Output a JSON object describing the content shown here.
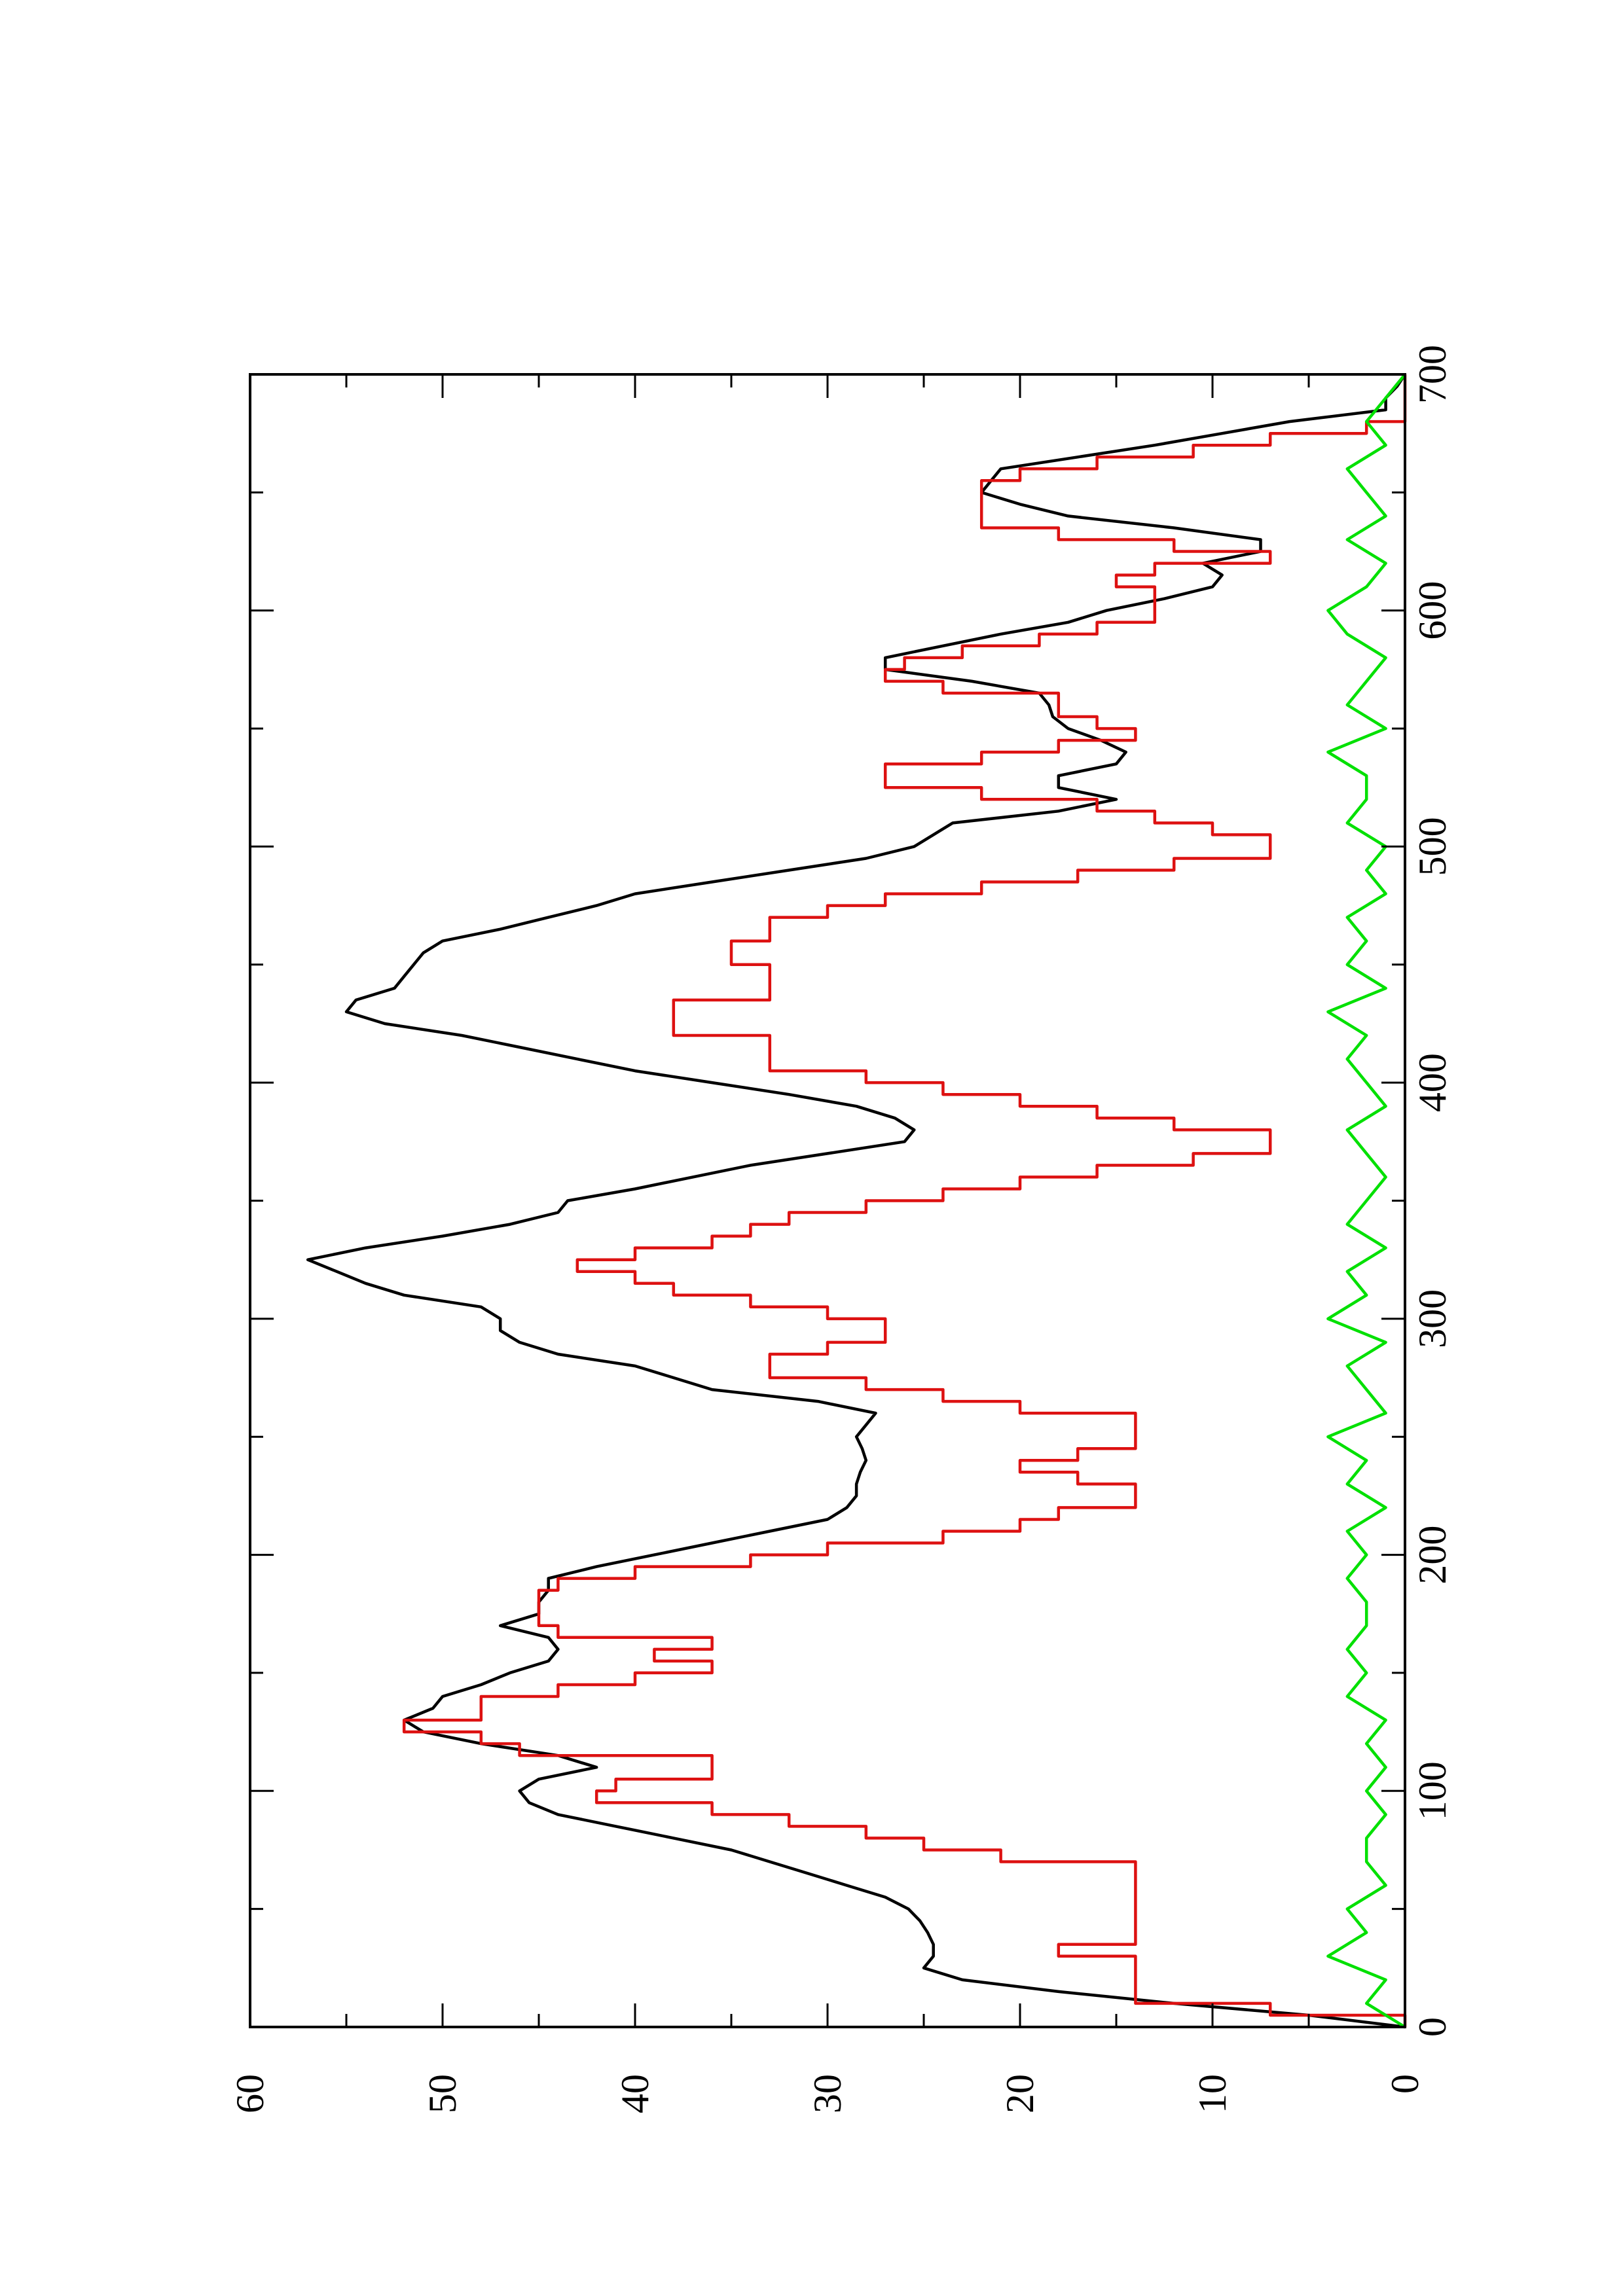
{
  "chart_data": {
    "type": "line",
    "orientation": "rotated-90-counterclockwise",
    "title": "",
    "xlabel": "",
    "ylabel": "",
    "xlim": [
      0,
      700
    ],
    "ylim": [
      0,
      60
    ],
    "x_major_ticks": [
      0,
      100,
      200,
      300,
      400,
      500,
      600,
      700
    ],
    "x_minor_ticks": [
      50,
      150,
      250,
      350,
      450,
      550,
      650
    ],
    "y_major_ticks": [
      0,
      10,
      20,
      30,
      40,
      50,
      60
    ],
    "y_minor_ticks": [
      5,
      15,
      25,
      35,
      45,
      55
    ],
    "x_tick_labels": [
      "0",
      "100",
      "200",
      "300",
      "400",
      "500",
      "600",
      "700"
    ],
    "y_tick_labels": [
      "0",
      "10",
      "20",
      "30",
      "40",
      "50",
      "60"
    ],
    "grid": false,
    "legend": "none",
    "colors": {
      "black_series": "#000000",
      "red_series": "#dd1111",
      "green_series": "#00e000"
    },
    "series": [
      {
        "color": "#000000",
        "style": "smooth",
        "x": [
          0,
          5,
          10,
          15,
          20,
          25,
          30,
          35,
          40,
          45,
          50,
          55,
          60,
          65,
          70,
          75,
          80,
          85,
          90,
          95,
          100,
          105,
          110,
          115,
          120,
          125,
          130,
          135,
          140,
          145,
          150,
          155,
          160,
          165,
          170,
          175,
          180,
          185,
          190,
          195,
          200,
          205,
          210,
          215,
          220,
          225,
          230,
          235,
          240,
          245,
          250,
          255,
          260,
          265,
          270,
          275,
          280,
          285,
          290,
          295,
          300,
          305,
          310,
          315,
          320,
          325,
          330,
          335,
          340,
          345,
          350,
          355,
          360,
          365,
          370,
          375,
          380,
          385,
          390,
          395,
          400,
          405,
          410,
          415,
          420,
          425,
          430,
          435,
          440,
          445,
          450,
          455,
          460,
          465,
          470,
          475,
          480,
          485,
          490,
          495,
          500,
          505,
          510,
          515,
          520,
          525,
          530,
          535,
          540,
          545,
          550,
          555,
          560,
          565,
          570,
          575,
          580,
          585,
          590,
          595,
          600,
          605,
          610,
          615,
          620,
          625,
          630,
          635,
          640,
          645,
          650,
          655,
          660,
          665,
          670,
          675,
          680,
          685,
          690,
          695,
          700
        ],
        "y": [
          0,
          5,
          12,
          18,
          23,
          25,
          24.5,
          24.5,
          24.8,
          25.2,
          25.8,
          27,
          29,
          31,
          33,
          35,
          38,
          41,
          44,
          45.5,
          46,
          45,
          42,
          44,
          48,
          51,
          52,
          50.5,
          50,
          48,
          46.5,
          44.5,
          44,
          44.5,
          47,
          45,
          45,
          44.5,
          44.5,
          42,
          39,
          36,
          33,
          30,
          29,
          28.5,
          28.5,
          28.3,
          28,
          28.2,
          28.5,
          28,
          27.5,
          30.5,
          36,
          38,
          40,
          44,
          46,
          47,
          47,
          48,
          52,
          54,
          55.5,
          57,
          54,
          50,
          46.5,
          44,
          43.5,
          40,
          37,
          34,
          30,
          26,
          25.5,
          26.5,
          28.5,
          32,
          36,
          40,
          43,
          46,
          49,
          53,
          55,
          54.5,
          52.5,
          52,
          51.5,
          51,
          50,
          47,
          44.5,
          42,
          40,
          36,
          32,
          28,
          25.5,
          24.5,
          23.5,
          18,
          15,
          18,
          18,
          15,
          14.5,
          15.8,
          17.5,
          18.3,
          18.5,
          19,
          22.5,
          27,
          27,
          24,
          21,
          17.5,
          15.5,
          12.5,
          10,
          9.5,
          10.5,
          7.5,
          7.5,
          12,
          17.5,
          20,
          22,
          21.5,
          21,
          17,
          13,
          9.5,
          6,
          1,
          1,
          0.4,
          0
        ],
        "interpretation_note": "approximate trace read from rotated chart"
      },
      {
        "color": "#dd1111",
        "style": "steps",
        "x": [
          0,
          5,
          10,
          15,
          20,
          25,
          30,
          35,
          40,
          45,
          50,
          55,
          60,
          65,
          70,
          75,
          80,
          85,
          90,
          95,
          100,
          105,
          110,
          115,
          120,
          125,
          130,
          135,
          140,
          145,
          150,
          155,
          160,
          165,
          170,
          175,
          180,
          185,
          190,
          195,
          200,
          205,
          210,
          215,
          220,
          225,
          230,
          235,
          240,
          245,
          250,
          255,
          260,
          265,
          270,
          275,
          280,
          285,
          290,
          295,
          300,
          305,
          310,
          315,
          320,
          325,
          330,
          335,
          340,
          345,
          350,
          355,
          360,
          365,
          370,
          375,
          380,
          385,
          390,
          395,
          400,
          405,
          410,
          415,
          420,
          425,
          430,
          435,
          440,
          445,
          450,
          455,
          460,
          465,
          470,
          475,
          480,
          485,
          490,
          495,
          500,
          505,
          510,
          515,
          520,
          525,
          530,
          535,
          540,
          545,
          550,
          555,
          560,
          565,
          570,
          575,
          580,
          585,
          590,
          595,
          600,
          605,
          610,
          615,
          620,
          625,
          630,
          635,
          640,
          645,
          650,
          655,
          660,
          665,
          670,
          675,
          680,
          685,
          690,
          695,
          700
        ],
        "y": [
          0,
          7,
          14,
          14,
          14,
          14,
          18,
          14,
          14,
          14,
          14,
          14,
          14,
          14,
          21,
          25,
          28,
          32,
          36,
          42,
          41,
          36,
          36,
          46,
          48,
          52,
          48,
          48,
          44,
          40,
          36,
          39,
          36,
          44,
          45,
          45,
          45,
          44,
          40,
          34,
          30,
          24,
          20,
          18,
          14,
          14,
          17,
          20,
          17,
          14,
          14,
          14,
          20,
          24,
          28,
          33,
          33,
          30,
          27,
          27,
          30,
          34,
          38,
          40,
          43,
          40,
          36,
          34,
          32,
          28,
          24,
          20,
          16,
          11,
          7,
          7,
          12,
          16,
          20,
          24,
          28,
          33,
          33,
          33,
          38,
          38,
          38,
          33,
          33,
          33,
          35,
          35,
          33,
          33,
          30,
          27,
          22,
          17,
          12,
          7,
          7,
          10,
          13,
          16,
          22,
          27,
          27,
          22,
          18,
          14,
          16,
          18,
          18,
          24,
          27,
          26,
          23,
          19,
          16,
          13,
          13,
          13,
          15,
          13,
          7,
          12,
          18,
          22,
          22,
          22,
          22,
          20,
          16,
          11,
          7,
          2,
          0,
          0,
          0,
          0,
          0
        ],
        "interpretation_note": "approximate trace read from rotated chart"
      },
      {
        "color": "#00e000",
        "style": "noisy",
        "x": [
          0,
          10,
          20,
          30,
          40,
          50,
          60,
          70,
          80,
          90,
          100,
          110,
          120,
          130,
          140,
          150,
          160,
          170,
          180,
          190,
          200,
          210,
          220,
          230,
          240,
          250,
          260,
          270,
          280,
          290,
          300,
          310,
          320,
          330,
          340,
          350,
          360,
          370,
          380,
          390,
          400,
          410,
          420,
          430,
          440,
          450,
          460,
          470,
          480,
          490,
          500,
          510,
          520,
          530,
          540,
          550,
          560,
          570,
          580,
          590,
          600,
          610,
          620,
          630,
          640,
          650,
          660,
          670,
          680,
          690,
          700
        ],
        "y": [
          0,
          2,
          1,
          4,
          2,
          3,
          1,
          2,
          2,
          1,
          2,
          1,
          2,
          1,
          3,
          2,
          3,
          2,
          2,
          3,
          2,
          3,
          1,
          3,
          2,
          4,
          1,
          2,
          3,
          1,
          4,
          2,
          3,
          1,
          3,
          2,
          1,
          2,
          3,
          1,
          2,
          3,
          2,
          4,
          1,
          3,
          2,
          3,
          1,
          2,
          1,
          3,
          2,
          2,
          4,
          1,
          3,
          2,
          1,
          3,
          4,
          2,
          1,
          3,
          1,
          2,
          3,
          1,
          2,
          1,
          0
        ],
        "interpretation_note": "approximate trace read from rotated chart"
      }
    ]
  }
}
